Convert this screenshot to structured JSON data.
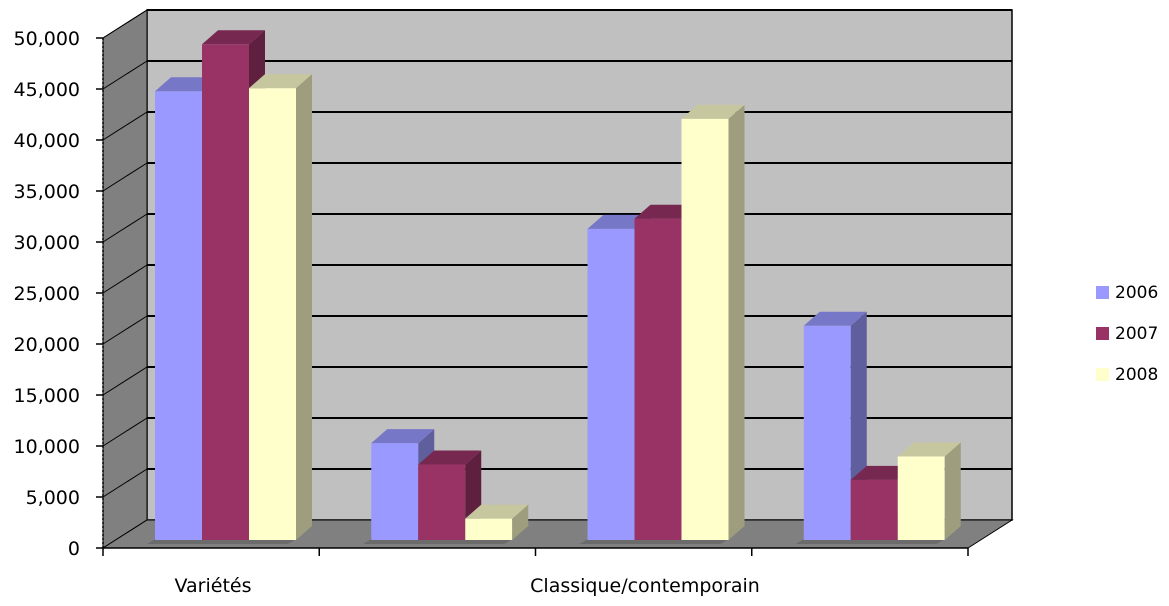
{
  "chart_data": {
    "type": "bar",
    "title": "",
    "xlabel": "",
    "ylabel": "",
    "ylim": [
      0,
      50000
    ],
    "yticks": [
      "0",
      "5,000",
      "10,000",
      "15,000",
      "20,000",
      "25,000",
      "30,000",
      "35,000",
      "40,000",
      "45,000",
      "50,000"
    ],
    "categories": [
      "Variétés",
      "",
      "Classique/contemporain",
      ""
    ],
    "series": [
      {
        "name": "2006",
        "color": "#9999ff",
        "values": [
          44000,
          9500,
          30500,
          21000
        ]
      },
      {
        "name": "2007",
        "color": "#993366",
        "values": [
          48600,
          7400,
          31500,
          5900
        ]
      },
      {
        "name": "2008",
        "color": "#ffffcc",
        "values": [
          44300,
          2100,
          41300,
          8200
        ]
      }
    ],
    "grid": true,
    "legend": "right",
    "style": "3d-clustered-column"
  }
}
